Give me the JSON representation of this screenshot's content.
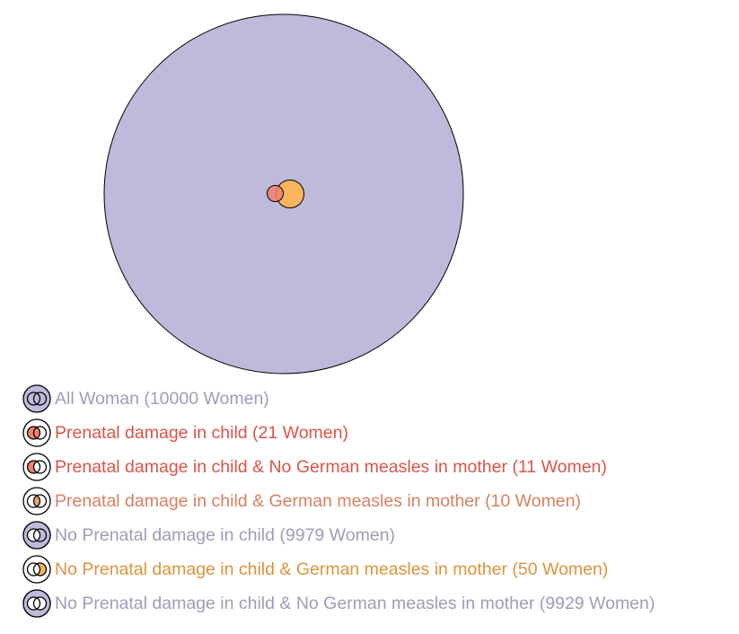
{
  "colors": {
    "all": "#bebadb",
    "damage": "#f08070",
    "measles": "#fbb45e",
    "outline": "#000000",
    "text_purple": "#a09cb8",
    "text_red": "#d9544a",
    "text_salmon": "#d98060",
    "text_orange": "#dc943a"
  },
  "venn": {
    "total": 10000,
    "prenatal_damage": 21,
    "german_measles": 60,
    "overlap": 10
  },
  "legend": [
    {
      "label": "All Woman (10000 Women)",
      "icon": "venn-all-icon",
      "color_key": "text_purple"
    },
    {
      "label": "Prenatal damage in child (21 Women)",
      "icon": "venn-damage-icon",
      "color_key": "text_red"
    },
    {
      "label": "Prenatal damage in child & No German measles in mother (11 Women)",
      "icon": "venn-damage-only-icon",
      "color_key": "text_red"
    },
    {
      "label": "Prenatal damage in child & German measles in mother (10 Women)",
      "icon": "venn-intersection-icon",
      "color_key": "text_salmon"
    },
    {
      "label": "No Prenatal damage in child (9979 Women)",
      "icon": "venn-no-damage-icon",
      "color_key": "text_purple"
    },
    {
      "label": "No Prenatal damage in child & German measles in mother (50 Women)",
      "icon": "venn-measles-only-icon",
      "color_key": "text_orange"
    },
    {
      "label": "No Prenatal damage in child & No German measles in mother (9929 Women)",
      "icon": "venn-neither-icon",
      "color_key": "text_purple"
    }
  ]
}
